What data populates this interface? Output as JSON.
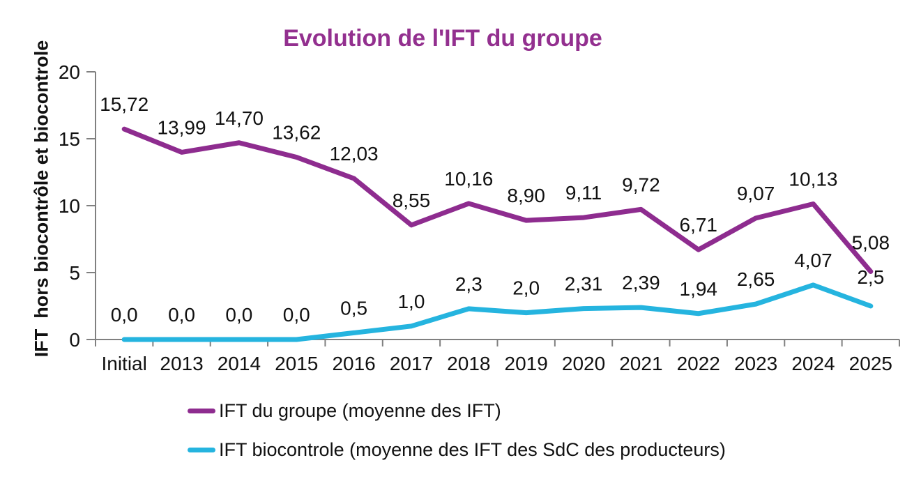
{
  "title": "Evolution de l'IFT du groupe",
  "y_axis_label": "IFT  hors biocontrôle et biocontrole",
  "legend": [
    {
      "label": "IFT du groupe (moyenne des IFT)",
      "color": "#8E2C8F"
    },
    {
      "label": "IFT biocontrole (moyenne des IFT des SdC des producteurs)",
      "color": "#25B4DF"
    }
  ],
  "colors": {
    "title": "#93308F",
    "axis": "#808080",
    "text": "#111111",
    "background": "#FFFFFF"
  },
  "chart_data": {
    "type": "line",
    "title": "Evolution de l'IFT du groupe",
    "xlabel": "",
    "ylabel": "IFT  hors biocontrôle et biocontrole",
    "ylim": [
      0,
      20
    ],
    "yticks": [
      0,
      5,
      10,
      15,
      20
    ],
    "grid": false,
    "legend_position": "bottom-left",
    "categories": [
      "Initial",
      "2013",
      "2014",
      "2015",
      "2016",
      "2017",
      "2018",
      "2019",
      "2020",
      "2021",
      "2022",
      "2023",
      "2024",
      "2025"
    ],
    "series": [
      {
        "name": "IFT du groupe (moyenne des IFT)",
        "color": "#8E2C8F",
        "values": [
          15.72,
          13.99,
          14.7,
          13.62,
          12.03,
          8.55,
          10.16,
          8.9,
          9.11,
          9.72,
          6.71,
          9.07,
          10.13,
          5.08
        ],
        "labels": [
          "15,72",
          "13,99",
          "14,70",
          "13,62",
          "12,03",
          "8,55",
          "10,16",
          "8,90",
          "9,11",
          "9,72",
          "6,71",
          "9,07",
          "10,13",
          "5,08"
        ]
      },
      {
        "name": "IFT biocontrole (moyenne des IFT des SdC des producteurs)",
        "color": "#25B4DF",
        "values": [
          0.0,
          0.0,
          0.0,
          0.0,
          0.5,
          1.0,
          2.3,
          2.0,
          2.31,
          2.39,
          1.94,
          2.65,
          4.07,
          2.5
        ],
        "labels": [
          "0,0",
          "0,0",
          "0,0",
          "0,0",
          "0,5",
          "1,0",
          "2,3",
          "2,0",
          "2,31",
          "2,39",
          "1,94",
          "2,65",
          "4,07",
          "2,5"
        ]
      }
    ]
  }
}
